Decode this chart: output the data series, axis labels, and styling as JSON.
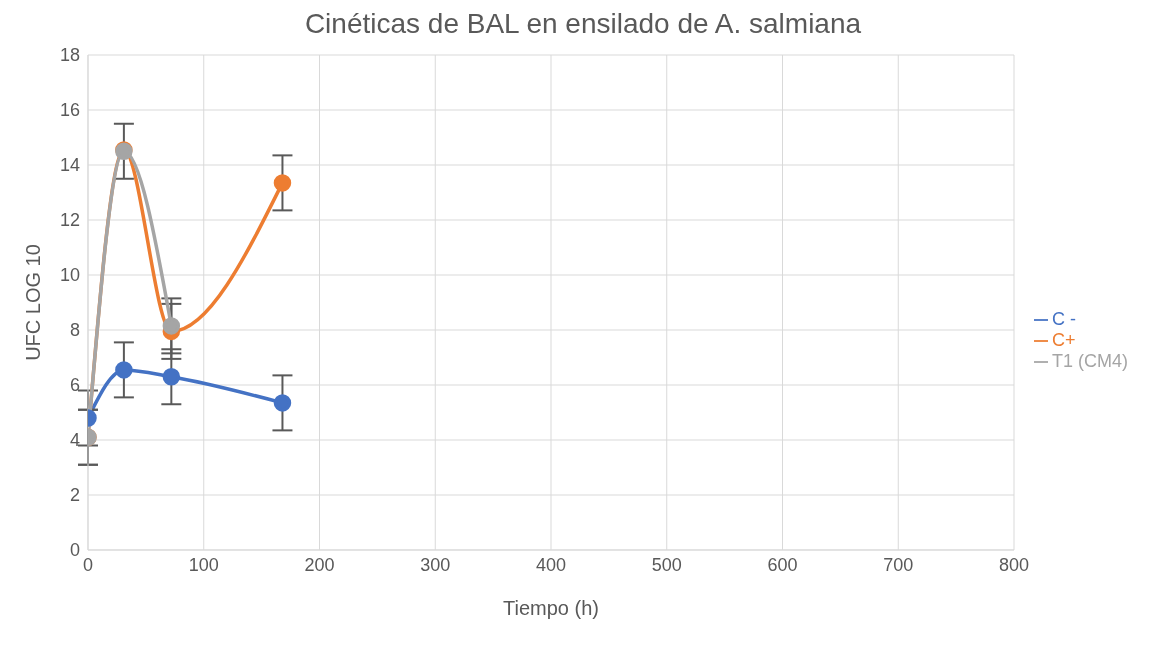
{
  "chart_data": {
    "type": "line",
    "title": "Cinéticas de BAL en ensilado de A. salmiana",
    "xlabel": "Tiempo (h)",
    "ylabel": "UFC LOG 10",
    "x": [
      0,
      31,
      72,
      168
    ],
    "series": [
      {
        "name": "C -",
        "color": "#4472c4",
        "values": [
          4.8,
          6.55,
          6.3,
          5.35
        ],
        "errors": [
          1,
          1,
          1,
          1
        ]
      },
      {
        "name": "C+",
        "color": "#ed7d31",
        "values": [
          4.1,
          14.55,
          7.95,
          13.35
        ],
        "errors": [
          1,
          null,
          1,
          1
        ]
      },
      {
        "name": "T1 (CM4)",
        "color": "#a5a5a5",
        "values": [
          4.1,
          14.5,
          8.15,
          null
        ],
        "errors": [
          1,
          1,
          1,
          null
        ]
      }
    ],
    "xlim": [
      0,
      800
    ],
    "xticks": [
      0,
      100,
      200,
      300,
      400,
      500,
      600,
      700,
      800
    ],
    "ylim": [
      0,
      18
    ],
    "yticks": [
      0,
      2,
      4,
      6,
      8,
      10,
      12,
      14,
      16,
      18
    ],
    "grid": true,
    "legend": "right",
    "marker": "circle",
    "line_style": "solid"
  }
}
